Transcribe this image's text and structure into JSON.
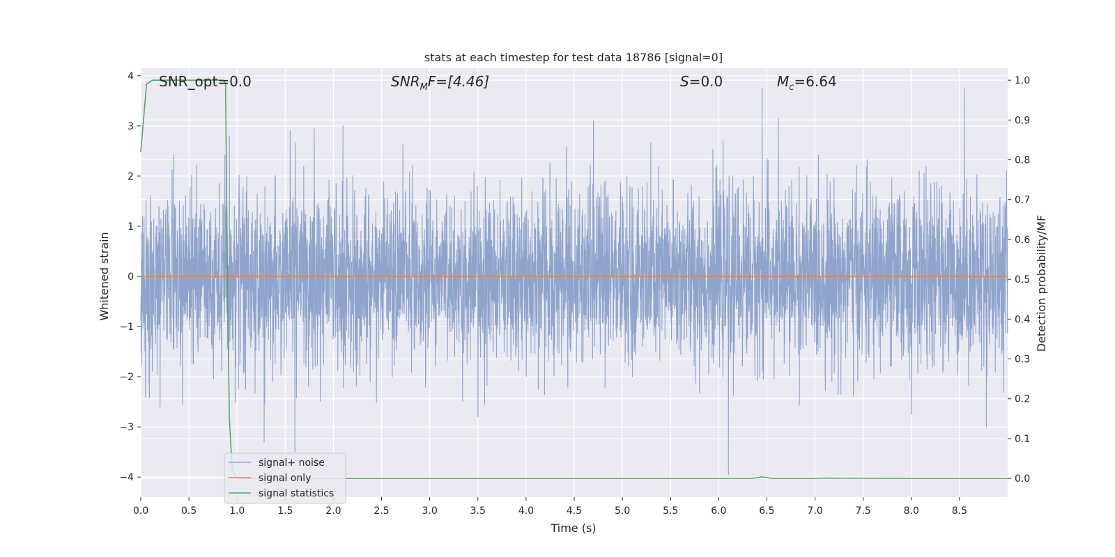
{
  "chart_data": {
    "type": "line",
    "title": "stats at each timestep for test data 18786 [signal=0]",
    "xlabel": "Time (s)",
    "ylabel_left": "Whitened strain",
    "ylabel_right": "Detection probability/MF",
    "xlim": [
      0.0,
      9.0
    ],
    "ylim_left": [
      -4.4,
      4.15
    ],
    "ylim_right": [
      -0.047,
      1.03
    ],
    "x_ticks": [
      "0.0",
      "0.5",
      "1.0",
      "1.5",
      "2.0",
      "2.5",
      "3.0",
      "3.5",
      "4.0",
      "4.5",
      "5.0",
      "5.5",
      "6.0",
      "6.5",
      "7.0",
      "7.5",
      "8.0",
      "8.5"
    ],
    "x_tick_values": [
      0.0,
      0.5,
      1.0,
      1.5,
      2.0,
      2.5,
      3.0,
      3.5,
      4.0,
      4.5,
      5.0,
      5.5,
      6.0,
      6.5,
      7.0,
      7.5,
      8.0,
      8.5
    ],
    "y_left_ticks": [
      "4",
      "3",
      "2",
      "1",
      "0",
      "−1",
      "−2",
      "−3",
      "−4"
    ],
    "y_left_tick_values": [
      4,
      3,
      2,
      1,
      0,
      -1,
      -2,
      -3,
      -4
    ],
    "y_right_ticks": [
      "1.0",
      "0.9",
      "0.8",
      "0.7",
      "0.6",
      "0.5",
      "0.4",
      "0.3",
      "0.2",
      "0.1",
      "0.0"
    ],
    "y_right_tick_values": [
      1.0,
      0.9,
      0.8,
      0.7,
      0.6,
      0.5,
      0.4,
      0.3,
      0.2,
      0.1,
      0.0
    ],
    "grid": true,
    "legend_placement": "lower-left",
    "annotations": {
      "snr_opt": "SNR_opt=0.0",
      "snr_mf_main": "SNR",
      "snr_mf_sub": "M",
      "snr_mf_rest": "F=[4.46]",
      "s_main": "S",
      "s_rest": "=0.0",
      "mc_main": "M",
      "mc_sub": "c",
      "mc_rest": "=6.64"
    },
    "series": [
      {
        "name": "signal+ noise",
        "axis": "left",
        "color": "#8fa4cc",
        "envelope": "noise, |strain| mostly within 2.5, peaks near 3.8",
        "spikes": [
          {
            "x": 6.45,
            "y": 3.75
          },
          {
            "x": 8.55,
            "y": 3.75
          },
          {
            "x": 4.7,
            "y": 3.1
          },
          {
            "x": 6.62,
            "y": 3.15
          },
          {
            "x": 0.92,
            "y": 2.8
          },
          {
            "x": 1.55,
            "y": 2.9
          },
          {
            "x": 1.8,
            "y": 2.95
          },
          {
            "x": 2.1,
            "y": 3.0
          },
          {
            "x": 6.1,
            "y": -3.95
          },
          {
            "x": 1.6,
            "y": -3.5
          },
          {
            "x": 1.28,
            "y": -3.3
          },
          {
            "x": 8.78,
            "y": -3.0
          },
          {
            "x": 3.5,
            "y": -2.8
          },
          {
            "x": 8.0,
            "y": -2.75
          },
          {
            "x": 0.2,
            "y": -2.6
          }
        ]
      },
      {
        "name": "signal only",
        "axis": "left",
        "color": "#dd8452",
        "x": [
          0.0,
          9.0
        ],
        "y": [
          0.0,
          0.0
        ]
      },
      {
        "name": "signal statistics",
        "axis": "right",
        "color": "#55a868",
        "x": [
          0.0,
          0.06,
          0.12,
          0.2,
          0.4,
          0.6,
          0.8,
          0.86,
          0.88,
          0.9,
          0.92,
          0.95,
          1.0,
          1.5,
          2.0,
          3.0,
          4.0,
          5.0,
          6.0,
          6.35,
          6.45,
          6.55,
          7.0,
          7.1,
          8.0,
          9.0
        ],
        "y": [
          0.82,
          0.99,
          1.0,
          1.0,
          1.0,
          1.0,
          1.0,
          1.0,
          0.99,
          0.5,
          0.15,
          0.02,
          0.0,
          0.0,
          0.0,
          0.0,
          0.0,
          0.0,
          0.0,
          0.0,
          0.004,
          0.0,
          0.0,
          0.001,
          0.0,
          0.0
        ]
      }
    ]
  }
}
